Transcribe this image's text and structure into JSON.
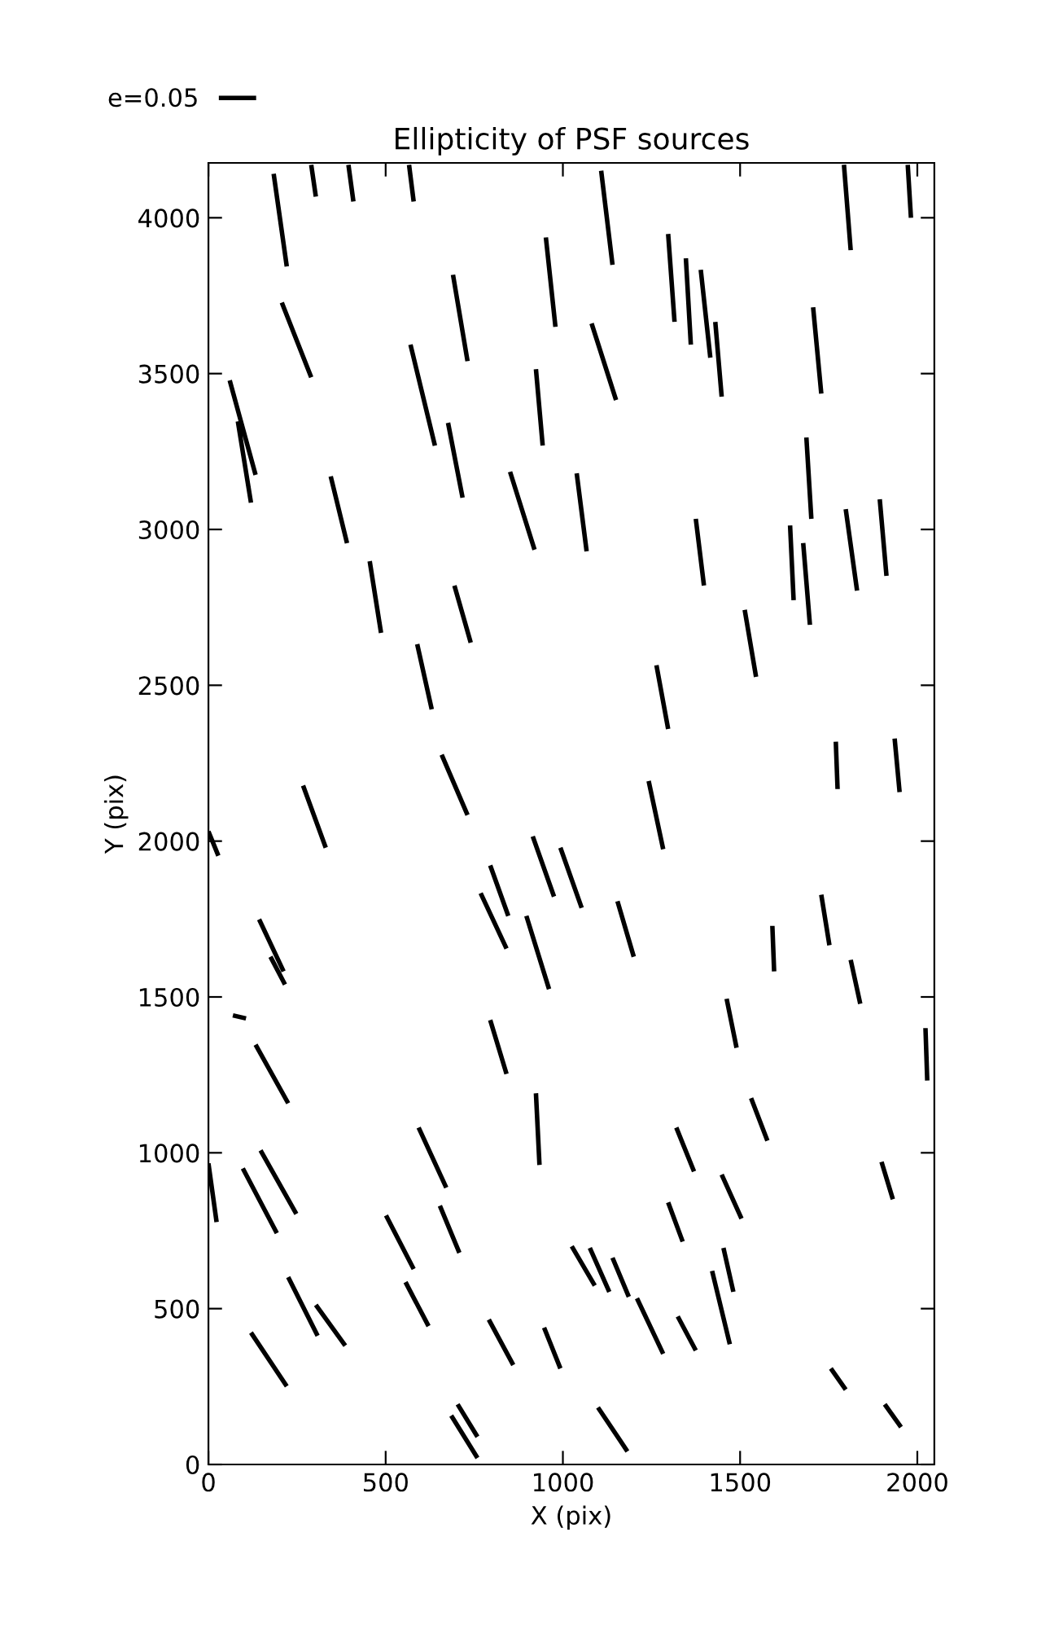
{
  "chart_data": {
    "type": "line",
    "title": "Ellipticity of PSF sources",
    "xlabel": "X (pix)",
    "ylabel": "Y (pix)",
    "xlim": [
      0,
      2048
    ],
    "ylim": [
      0,
      4176
    ],
    "xticks": [
      0,
      500,
      1000,
      1500,
      2000
    ],
    "yticks": [
      0,
      500,
      1000,
      1500,
      2000,
      2500,
      3000,
      3500,
      4000
    ],
    "grid": false,
    "legend": "top left",
    "marker": "none",
    "line_style": "solid",
    "series": [
      {
        "name": "e=0.05",
        "color": "#000000",
        "x": [
          184,
          221,
          null,
          290,
          303,
          null,
          395,
          409,
          null,
          566,
          579,
          null,
          1108,
          1140,
          null,
          1793,
          1812,
          null,
          1973,
          1982,
          null,
          690,
          731,
          null,
          952,
          979,
          null,
          1297,
          1315,
          null,
          1347,
          1361,
          null,
          1389,
          1416,
          null,
          1430,
          1448,
          null,
          1706,
          1729,
          null,
          207,
          290,
          null,
          1081,
          1150,
          null,
          570,
          639,
          null,
          60,
          133,
          null,
          83,
          120,
          null,
          676,
          717,
          null,
          924,
          943,
          null,
          1687,
          1701,
          null,
          345,
          391,
          null,
          851,
          920,
          null,
          1039,
          1067,
          null,
          1894,
          1913,
          null,
          1798,
          1830,
          null,
          1375,
          1398,
          null,
          1641,
          1651,
          null,
          1678,
          1697,
          null,
          455,
          487,
          null,
          694,
          740,
          null,
          1513,
          1545,
          null,
          589,
          630,
          null,
          1264,
          1297,
          null,
          1770,
          1775,
          null,
          1936,
          1950,
          null,
          658,
          731,
          null,
          1242,
          1283,
          null,
          267,
          331,
          null,
          0,
          28,
          null,
          915,
          975,
          null,
          993,
          1053,
          null,
          795,
          846,
          null,
          768,
          841,
          null,
          897,
          961,
          null,
          1154,
          1200,
          null,
          1729,
          1752,
          null,
          1591,
          1596,
          null,
          143,
          212,
          null,
          175,
          216,
          null,
          1812,
          1839,
          null,
          2023,
          2028,
          null,
          69,
          106,
          null,
          133,
          225,
          null,
          1462,
          1490,
          null,
          795,
          841,
          null,
          924,
          934,
          null,
          1531,
          1577,
          null,
          593,
          671,
          null,
          1320,
          1370,
          null,
          0,
          23,
          null,
          147,
          248,
          null,
          97,
          193,
          null,
          1448,
          1504,
          null,
          1899,
          1931,
          null,
          653,
          708,
          null,
          1297,
          1338,
          null,
          501,
          579,
          null,
          1025,
          1090,
          null,
          1076,
          1131,
          null,
          1140,
          1186,
          null,
          1453,
          1481,
          null,
          1421,
          1471,
          null,
          225,
          308,
          null,
          556,
          621,
          null,
          1209,
          1283,
          null,
          303,
          386,
          null,
          1324,
          1375,
          null,
          791,
          860,
          null,
          947,
          993,
          null,
          120,
          221,
          null,
          1756,
          1798,
          null,
          1908,
          1954,
          null,
          1099,
          1182,
          null,
          703,
          759,
          null,
          685,
          759
        ],
        "values": [
          4141,
          3844,
          null,
          4170,
          4068,
          null,
          4170,
          4052,
          null,
          4170,
          4052,
          null,
          4151,
          3849,
          null,
          4170,
          3896,
          null,
          4170,
          4000,
          null,
          3817,
          3540,
          null,
          3937,
          3650,
          null,
          3948,
          3666,
          null,
          3870,
          3593,
          null,
          3833,
          3551,
          null,
          3666,
          3426,
          null,
          3713,
          3436,
          null,
          3728,
          3488,
          null,
          3661,
          3415,
          null,
          3593,
          3269,
          null,
          3478,
          3175,
          null,
          3347,
          3086,
          null,
          3342,
          3102,
          null,
          3514,
          3269,
          null,
          3295,
          3034,
          null,
          3170,
          2956,
          null,
          3185,
          2935,
          null,
          3180,
          2930,
          null,
          3097,
          2851,
          null,
          3065,
          2804,
          null,
          3034,
          2820,
          null,
          3013,
          2773,
          null,
          2956,
          2694,
          null,
          2898,
          2668,
          null,
          2820,
          2637,
          null,
          2742,
          2527,
          null,
          2632,
          2423,
          null,
          2564,
          2360,
          null,
          2319,
          2167,
          null,
          2329,
          2157,
          null,
          2277,
          2084,
          null,
          2193,
          1974,
          null,
          2178,
          1979,
          null,
          2031,
          1953,
          null,
          2015,
          1822,
          null,
          1979,
          1786,
          null,
          1922,
          1760,
          null,
          1833,
          1655,
          null,
          1760,
          1525,
          null,
          1807,
          1629,
          null,
          1828,
          1666,
          null,
          1728,
          1582,
          null,
          1749,
          1582,
          null,
          1629,
          1540,
          null,
          1619,
          1478,
          null,
          1400,
          1232,
          null,
          1441,
          1431,
          null,
          1347,
          1159,
          null,
          1494,
          1337,
          null,
          1426,
          1253,
          null,
          1191,
          961,
          null,
          1175,
          1039,
          null,
          1081,
          888,
          null,
          1081,
          940,
          null,
          966,
          778,
          null,
          1008,
          804,
          null,
          950,
          742,
          null,
          930,
          789,
          null,
          971,
          851,
          null,
          830,
          679,
          null,
          841,
          715,
          null,
          799,
          627,
          null,
          700,
          574,
          null,
          695,
          554,
          null,
          663,
          538,
          null,
          695,
          554,
          null,
          621,
          386,
          null,
          601,
          413,
          null,
          585,
          444,
          null,
          533,
          355,
          null,
          512,
          381,
          null,
          475,
          366,
          null,
          465,
          319,
          null,
          439,
          308,
          null,
          423,
          251,
          null,
          308,
          240,
          null,
          193,
          120,
          null,
          183,
          42,
          null,
          193,
          89,
          null,
          157,
          21
        ]
      }
    ]
  }
}
